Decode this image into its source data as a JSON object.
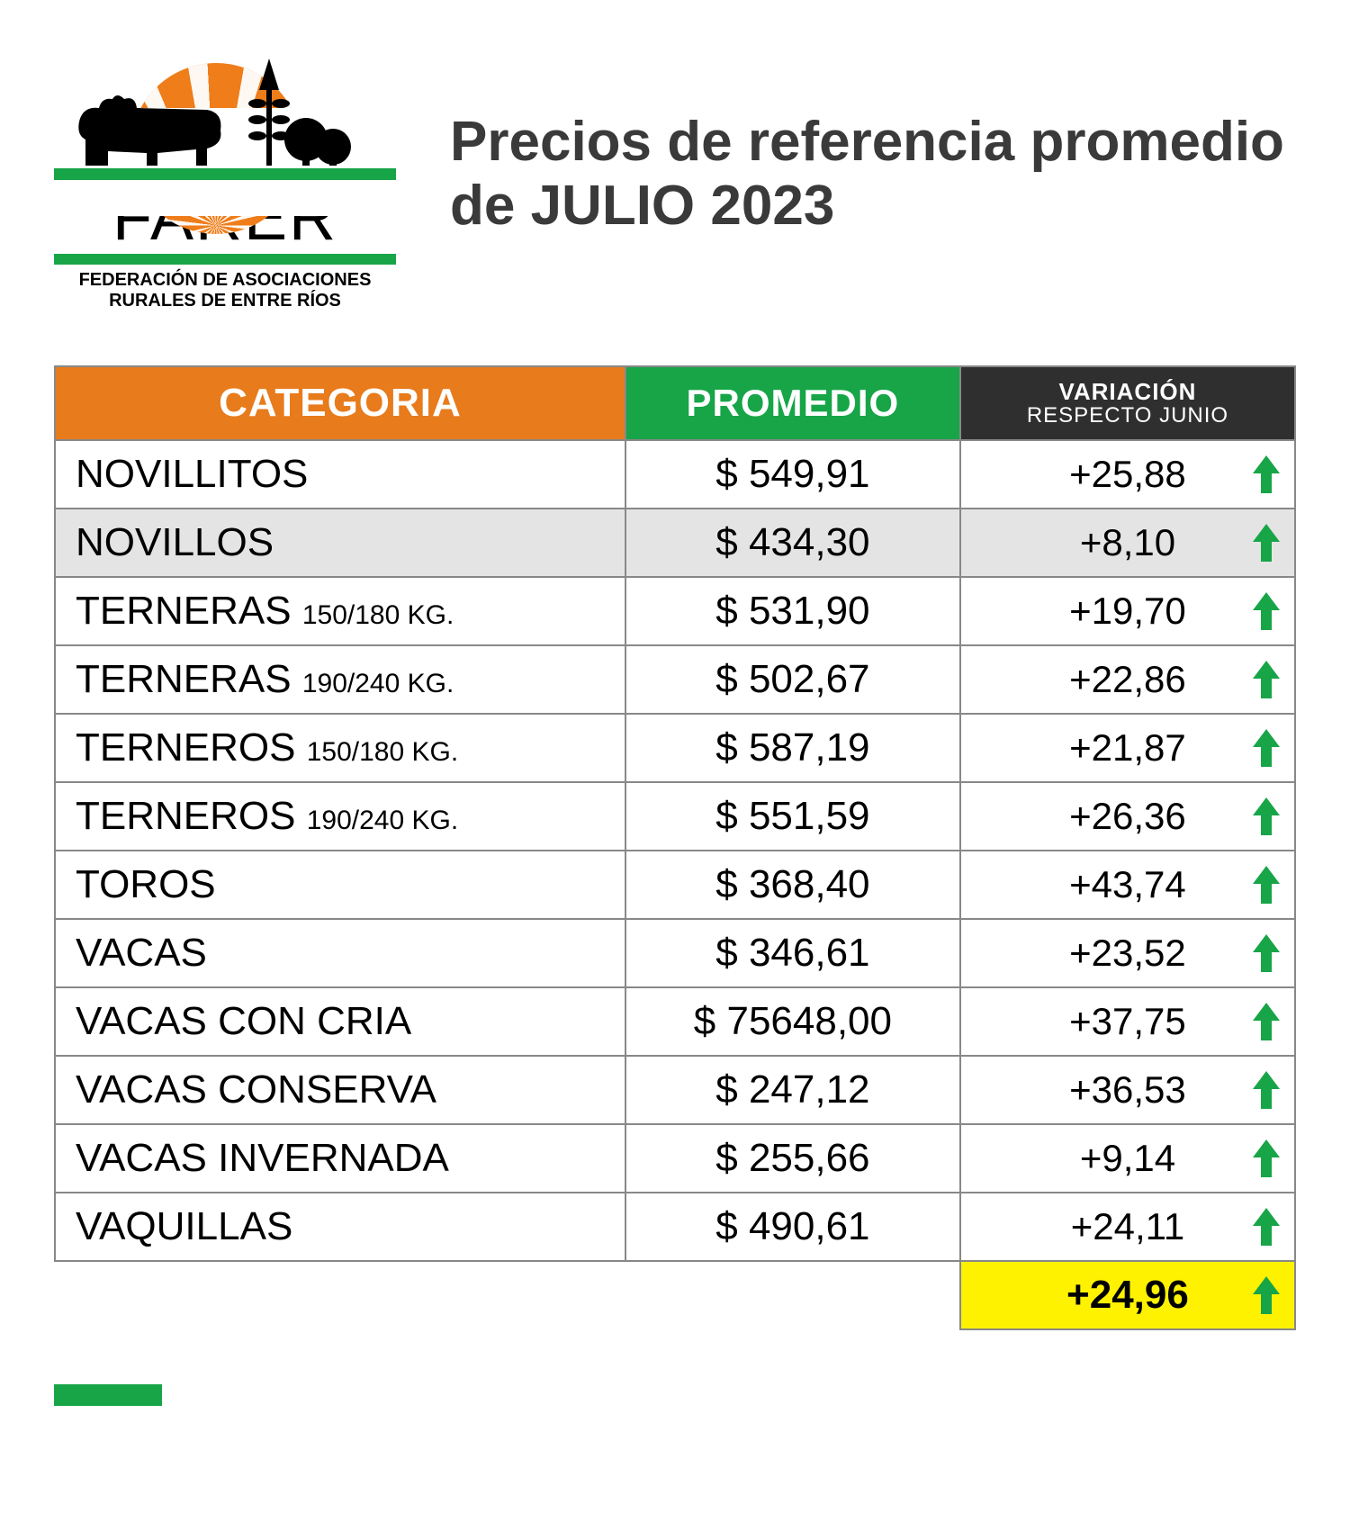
{
  "logo": {
    "name": "FARER",
    "subtitle_line1": "FEDERACIÓN DE ASOCIACIONES",
    "subtitle_line2": "RURALES DE ENTRE RÍOS",
    "colors": {
      "sun": "#ef7d1a",
      "green": "#17a548",
      "black": "#000000"
    }
  },
  "title": "Precios de referencia promedio de JULIO 2023",
  "table": {
    "type": "table",
    "header": {
      "categoria": "CATEGORIA",
      "promedio": "PROMEDIO",
      "variacion_top": "VARIACIÓN",
      "variacion_sub": "RESPECTO JUNIO",
      "bg_categoria": "#e87b1c",
      "bg_promedio": "#17a548",
      "bg_variacion": "#2f2f2f",
      "text_color": "#ffffff"
    },
    "row_border_color": "#888888",
    "shaded_row_bg": "#e4e4e4",
    "total_row_bg": "#fff200",
    "arrow_color": "#17a548",
    "fontsize_body": 42,
    "rows": [
      {
        "categoria": "NOVILLITOS",
        "kg": "",
        "promedio": "$ 549,91",
        "variacion": "+25,88",
        "dir": "up",
        "shaded": false
      },
      {
        "categoria": "NOVILLOS",
        "kg": "",
        "promedio": "$ 434,30",
        "variacion": "+8,10",
        "dir": "up",
        "shaded": true
      },
      {
        "categoria": "TERNERAS",
        "kg": "150/180 KG.",
        "promedio": "$ 531,90",
        "variacion": "+19,70",
        "dir": "up",
        "shaded": false
      },
      {
        "categoria": "TERNERAS",
        "kg": "190/240 KG.",
        "promedio": "$ 502,67",
        "variacion": "+22,86",
        "dir": "up",
        "shaded": false
      },
      {
        "categoria": "TERNEROS",
        "kg": "150/180 KG.",
        "promedio": "$ 587,19",
        "variacion": "+21,87",
        "dir": "up",
        "shaded": false
      },
      {
        "categoria": "TERNEROS",
        "kg": "190/240 KG.",
        "promedio": "$ 551,59",
        "variacion": "+26,36",
        "dir": "up",
        "shaded": false
      },
      {
        "categoria": "TOROS",
        "kg": "",
        "promedio": "$ 368,40",
        "variacion": "+43,74",
        "dir": "up",
        "shaded": false
      },
      {
        "categoria": "VACAS",
        "kg": "",
        "promedio": "$ 346,61",
        "variacion": "+23,52",
        "dir": "up",
        "shaded": false
      },
      {
        "categoria": "VACAS CON CRIA",
        "kg": "",
        "promedio": "$ 75648,00",
        "variacion": "+37,75",
        "dir": "up",
        "shaded": false
      },
      {
        "categoria": "VACAS CONSERVA",
        "kg": "",
        "promedio": "$ 247,12",
        "variacion": "+36,53",
        "dir": "up",
        "shaded": false
      },
      {
        "categoria": "VACAS INVERNADA",
        "kg": "",
        "promedio": "$ 255,66",
        "variacion": "+9,14",
        "dir": "up",
        "shaded": false
      },
      {
        "categoria": "VAQUILLAS",
        "kg": "",
        "promedio": "$ 490,61",
        "variacion": "+24,11",
        "dir": "up",
        "shaded": false
      }
    ],
    "total": {
      "variacion": "+24,96",
      "dir": "up"
    }
  }
}
